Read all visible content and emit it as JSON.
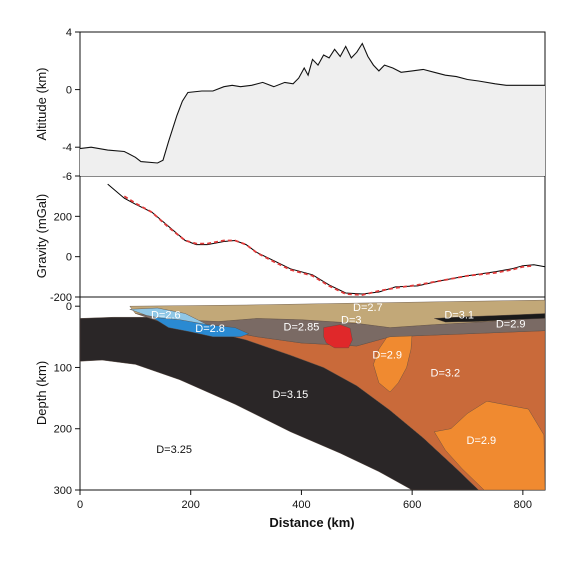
{
  "chart_data": [
    {
      "type": "line",
      "ylabel": "Altitude (km)",
      "xlim": [
        0,
        840
      ],
      "ylim": [
        -6,
        4
      ],
      "yticks": [
        4,
        0,
        -4,
        -6
      ],
      "series": [
        {
          "values": [
            [
              0,
              -4.1
            ],
            [
              20,
              -4.0
            ],
            [
              50,
              -4.2
            ],
            [
              80,
              -4.3
            ],
            [
              100,
              -4.7
            ],
            [
              110,
              -5.0
            ],
            [
              140,
              -5.1
            ],
            [
              150,
              -4.9
            ],
            [
              160,
              -3.6
            ],
            [
              175,
              -1.8
            ],
            [
              185,
              -0.8
            ],
            [
              195,
              -0.2
            ],
            [
              220,
              -0.1
            ],
            [
              240,
              -0.1
            ],
            [
              260,
              0.2
            ],
            [
              275,
              0.3
            ],
            [
              290,
              0.2
            ],
            [
              310,
              0.3
            ],
            [
              330,
              0.5
            ],
            [
              350,
              0.2
            ],
            [
              370,
              0.5
            ],
            [
              385,
              0.4
            ],
            [
              395,
              0.8
            ],
            [
              405,
              1.5
            ],
            [
              412,
              1.0
            ],
            [
              420,
              2.1
            ],
            [
              430,
              1.7
            ],
            [
              440,
              2.4
            ],
            [
              450,
              2.2
            ],
            [
              460,
              2.8
            ],
            [
              470,
              2.3
            ],
            [
              480,
              3.0
            ],
            [
              490,
              2.2
            ],
            [
              500,
              2.6
            ],
            [
              510,
              3.2
            ],
            [
              520,
              2.3
            ],
            [
              530,
              1.7
            ],
            [
              540,
              1.3
            ],
            [
              550,
              1.7
            ],
            [
              565,
              1.5
            ],
            [
              580,
              1.2
            ],
            [
              600,
              1.3
            ],
            [
              620,
              1.4
            ],
            [
              640,
              1.2
            ],
            [
              660,
              1.0
            ],
            [
              680,
              0.9
            ],
            [
              700,
              0.7
            ],
            [
              720,
              0.6
            ],
            [
              750,
              0.4
            ],
            [
              770,
              0.3
            ],
            [
              800,
              0.3
            ],
            [
              840,
              0.3
            ]
          ]
        }
      ]
    },
    {
      "type": "line",
      "ylabel": "Gravity (mGal)",
      "xlim": [
        0,
        840
      ],
      "ylim": [
        -200,
        400
      ],
      "yticks": [
        200,
        0,
        -200
      ],
      "series": [
        {
          "style": "observed",
          "color": "#000000",
          "values": [
            [
              50,
              360
            ],
            [
              80,
              290
            ],
            [
              100,
              260
            ],
            [
              130,
              220
            ],
            [
              160,
              150
            ],
            [
              190,
              80
            ],
            [
              210,
              60
            ],
            [
              230,
              60
            ],
            [
              260,
              75
            ],
            [
              280,
              80
            ],
            [
              300,
              60
            ],
            [
              320,
              20
            ],
            [
              350,
              -20
            ],
            [
              380,
              -60
            ],
            [
              420,
              -90
            ],
            [
              450,
              -140
            ],
            [
              480,
              -180
            ],
            [
              510,
              -185
            ],
            [
              540,
              -175
            ],
            [
              570,
              -150
            ],
            [
              610,
              -145
            ],
            [
              650,
              -120
            ],
            [
              700,
              -95
            ],
            [
              750,
              -75
            ],
            [
              780,
              -60
            ],
            [
              800,
              -45
            ],
            [
              820,
              -40
            ],
            [
              840,
              -50
            ]
          ]
        },
        {
          "style": "calculated",
          "color": "#e03a3a",
          "values": [
            [
              80,
              300
            ],
            [
              100,
              265
            ],
            [
              130,
              220
            ],
            [
              160,
              145
            ],
            [
              190,
              80
            ],
            [
              210,
              65
            ],
            [
              230,
              65
            ],
            [
              260,
              80
            ],
            [
              280,
              80
            ],
            [
              300,
              60
            ],
            [
              320,
              18
            ],
            [
              350,
              -25
            ],
            [
              380,
              -65
            ],
            [
              420,
              -95
            ],
            [
              450,
              -145
            ],
            [
              480,
              -185
            ],
            [
              510,
              -190
            ],
            [
              540,
              -170
            ],
            [
              570,
              -155
            ],
            [
              610,
              -140
            ],
            [
              650,
              -120
            ],
            [
              700,
              -95
            ],
            [
              750,
              -80
            ],
            [
              780,
              -65
            ],
            [
              800,
              -50
            ],
            [
              820,
              -45
            ]
          ]
        }
      ]
    },
    {
      "type": "cross-section",
      "xlabel": "Distance (km)",
      "ylabel": "Depth (km)",
      "xlim": [
        0,
        840
      ],
      "ylim": [
        300,
        -15
      ],
      "xticks": [
        0,
        200,
        400,
        600,
        800
      ],
      "yticks": [
        0,
        100,
        200,
        300
      ],
      "bodies": [
        {
          "label": "D=3.25",
          "color": "#ffffff",
          "label_at": [
            170,
            240
          ]
        },
        {
          "label": "D=3.15",
          "color": "#2a2627",
          "label_at": [
            380,
            150
          ],
          "outline": [
            [
              0,
              20
            ],
            [
              60,
              18
            ],
            [
              140,
              18
            ],
            [
              210,
              35
            ],
            [
              300,
              55
            ],
            [
              380,
              80
            ],
            [
              440,
              100
            ],
            [
              500,
              130
            ],
            [
              560,
              170
            ],
            [
              620,
              215
            ],
            [
              680,
              265
            ],
            [
              720,
              300
            ],
            [
              600,
              300
            ],
            [
              540,
              270
            ],
            [
              470,
              240
            ],
            [
              380,
              205
            ],
            [
              280,
              160
            ],
            [
              180,
              120
            ],
            [
              100,
              95
            ],
            [
              40,
              88
            ],
            [
              0,
              90
            ]
          ]
        },
        {
          "label": "D=3.2",
          "color": "#c96a3a",
          "label_at": [
            660,
            115
          ],
          "outline": [
            [
              210,
              35
            ],
            [
              260,
              40
            ],
            [
              320,
              50
            ],
            [
              400,
              60
            ],
            [
              500,
              65
            ],
            [
              560,
              50
            ],
            [
              700,
              45
            ],
            [
              840,
              40
            ],
            [
              840,
              300
            ],
            [
              720,
              300
            ],
            [
              680,
              265
            ],
            [
              620,
              215
            ],
            [
              560,
              170
            ],
            [
              500,
              130
            ],
            [
              440,
              100
            ],
            [
              380,
              80
            ],
            [
              300,
              55
            ]
          ]
        },
        {
          "label": "D=2.9",
          "color": "#f08a30",
          "label_at": [
            555,
            85
          ],
          "outline": [
            [
              570,
              35
            ],
            [
              590,
              30
            ],
            [
              600,
              45
            ],
            [
              598,
              70
            ],
            [
              590,
              100
            ],
            [
              575,
              125
            ],
            [
              560,
              140
            ],
            [
              540,
              125
            ],
            [
              530,
              95
            ],
            [
              540,
              70
            ],
            [
              555,
              50
            ]
          ]
        },
        {
          "label": "D=2.9",
          "color": "#f08a30",
          "label_at": [
            725,
            225
          ],
          "outline": [
            [
              640,
              205
            ],
            [
              670,
              200
            ],
            [
              700,
              175
            ],
            [
              735,
              155
            ],
            [
              775,
              162
            ],
            [
              810,
              168
            ],
            [
              838,
              210
            ],
            [
              840,
              300
            ],
            [
              730,
              300
            ],
            [
              690,
              265
            ],
            [
              660,
              235
            ]
          ]
        },
        {
          "label": "D=3",
          "color": "#7a6a64",
          "label_at": [
            490,
            28
          ],
          "outline": [
            [
              100,
              12
            ],
            [
              180,
              22
            ],
            [
              250,
              25
            ],
            [
              320,
              20
            ],
            [
              400,
              22
            ],
            [
              500,
              28
            ],
            [
              560,
              35
            ],
            [
              640,
              30
            ],
            [
              740,
              25
            ],
            [
              840,
              18
            ],
            [
              840,
              40
            ],
            [
              700,
              45
            ],
            [
              560,
              50
            ],
            [
              500,
              65
            ],
            [
              400,
              60
            ],
            [
              320,
              50
            ],
            [
              260,
              40
            ],
            [
              210,
              35
            ],
            [
              160,
              30
            ]
          ]
        },
        {
          "label": "D=2.85",
          "color": "#e0282a",
          "label_at": [
            400,
            40
          ],
          "outline": [
            [
              440,
              35
            ],
            [
              470,
              30
            ],
            [
              488,
              36
            ],
            [
              492,
              55
            ],
            [
              485,
              68
            ],
            [
              460,
              68
            ],
            [
              445,
              60
            ],
            [
              440,
              50
            ]
          ]
        },
        {
          "label": "D=2.7",
          "color": "#c2a878",
          "label_at": [
            520,
            8
          ],
          "outline": [
            [
              90,
              0
            ],
            [
              300,
              -2
            ],
            [
              500,
              -5
            ],
            [
              700,
              -8
            ],
            [
              840,
              -10
            ],
            [
              840,
              18
            ],
            [
              740,
              25
            ],
            [
              640,
              30
            ],
            [
              560,
              35
            ],
            [
              500,
              28
            ],
            [
              400,
              22
            ],
            [
              320,
              20
            ],
            [
              250,
              25
            ],
            [
              180,
              22
            ],
            [
              100,
              12
            ]
          ]
        },
        {
          "label": "D=2.6",
          "color": "#8fc7e6",
          "label_at": [
            155,
            20
          ],
          "outline": [
            [
              90,
              5
            ],
            [
              140,
              3
            ],
            [
              190,
              12
            ],
            [
              230,
              30
            ],
            [
              200,
              30
            ],
            [
              160,
              22
            ],
            [
              120,
              15
            ]
          ]
        },
        {
          "label": "D=2.8",
          "color": "#2a8ad2",
          "label_at": [
            235,
            42
          ],
          "outline": [
            [
              130,
              18
            ],
            [
              180,
              22
            ],
            [
              230,
              30
            ],
            [
              280,
              35
            ],
            [
              305,
              45
            ],
            [
              290,
              50
            ],
            [
              240,
              50
            ],
            [
              200,
              42
            ],
            [
              160,
              35
            ]
          ]
        },
        {
          "label": "D=3.1",
          "color": "#1a1a1a",
          "label_at": [
            685,
            20
          ],
          "outline": [
            [
              640,
              20
            ],
            [
              700,
              17
            ],
            [
              760,
              15
            ],
            [
              840,
              12
            ],
            [
              840,
              20
            ],
            [
              780,
              22
            ],
            [
              720,
              25
            ],
            [
              660,
              26
            ]
          ]
        },
        {
          "label": "D=2.9",
          "color": "#bbbbbb",
          "label_at": [
            778,
            35
          ]
        }
      ]
    }
  ]
}
